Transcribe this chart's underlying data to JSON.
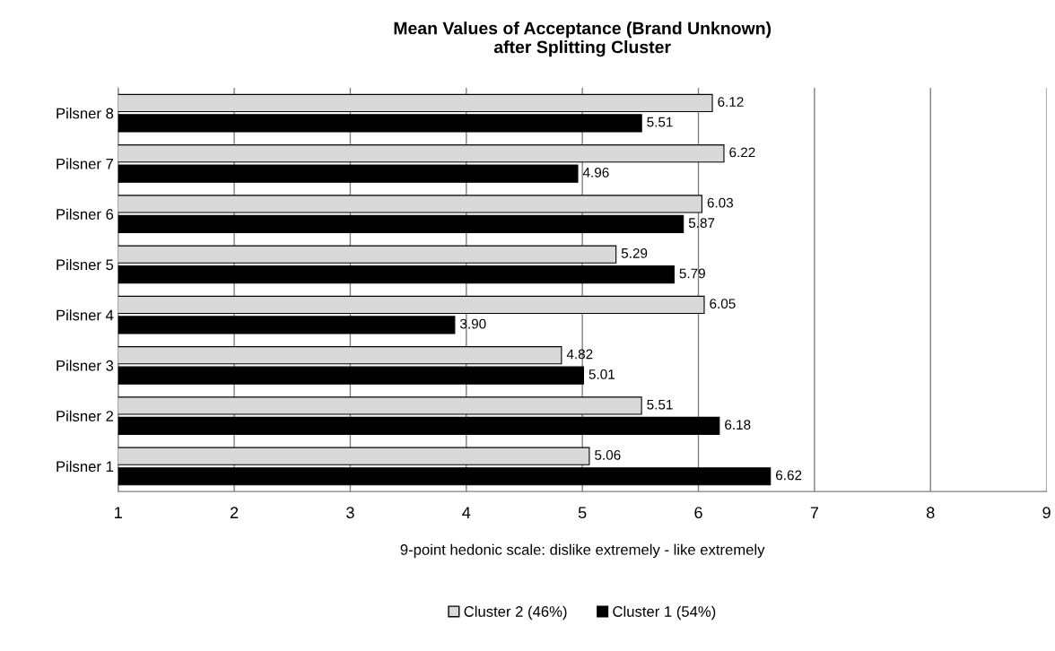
{
  "chart_data": {
    "type": "bar",
    "orientation": "horizontal",
    "title": "Mean Values of Acceptance (Brand Unknown)\nafter Splitting Cluster",
    "xlabel": "9-point hedonic scale: dislike extremely - like extremely",
    "categories": [
      "Pilsner 8",
      "Pilsner 7",
      "Pilsner 6",
      "Pilsner 5",
      "Pilsner 4",
      "Pilsner 3",
      "Pilsner 2",
      "Pilsner 1"
    ],
    "series": [
      {
        "name": "Cluster 2 (46%)",
        "color": "#d9d9d9",
        "values": [
          6.12,
          6.22,
          6.03,
          5.29,
          6.05,
          4.82,
          5.51,
          5.06
        ]
      },
      {
        "name": "Cluster 1 (54%)",
        "color": "#000000",
        "values": [
          5.51,
          4.96,
          5.87,
          5.79,
          3.9,
          5.01,
          6.18,
          6.62
        ]
      }
    ],
    "value_labels": [
      [
        "6.12",
        "6.22",
        "6.03",
        "5.29",
        "6.05",
        "4.82",
        "5.51",
        "5.06"
      ],
      [
        "5.51",
        "4.96",
        "5.87",
        "5.79",
        "3.90",
        "5.01",
        "6.18",
        "6.62"
      ]
    ],
    "xlim": [
      1,
      9
    ],
    "xticks": [
      1,
      2,
      3,
      4,
      5,
      6,
      7,
      8,
      9
    ],
    "grid": "x",
    "legend": "bottom"
  }
}
